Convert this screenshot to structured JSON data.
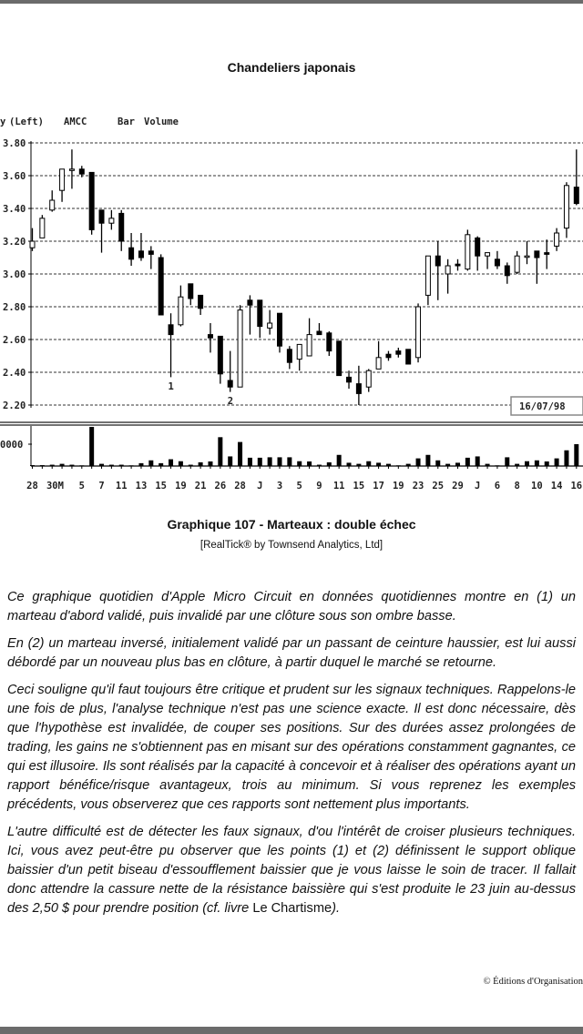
{
  "page": {
    "title": "Chandeliers japonais",
    "caption": "Graphique 107 - Marteaux : double échec",
    "source": "[RealTick® by Townsend Analytics, Ltd]",
    "paragraphs": [
      "Ce graphique quotidien d'Apple Micro Circuit en données quotidiennes montre en (1) un marteau d'abord validé, puis invalidé par une clôture sous son ombre basse.",
      "En (2) un marteau inversé, initialement validé par un passant de ceinture haussier, est lui aussi débordé par un nouveau plus bas en clôture, à partir duquel le marché se retourne.",
      "Ceci souligne qu'il faut toujours être critique et prudent sur les signaux techniques. Rappelons-le une fois de plus, l'analyse technique n'est pas une science exacte. Il est donc nécessaire, dès que l'hypothèse est invalidée, de couper ses positions. Sur des durées assez prolongées de trading, les gains ne s'obtiennent pas en misant sur des opérations constamment gagnantes, ce qui est illusoire. Ils sont réalisés par la capacité à concevoir et à réaliser des opérations ayant un rapport bénéfice/risque avantageux, trois au minimum. Si vous reprenez les exemples précédents, vous observerez que ces rapports sont nettement plus importants."
    ],
    "last_paragraph_italic": "L'autre difficulté est de détecter les faux signaux, d'ou l'intérêt de croiser plusieurs techniques. Ici, vous avez peut-être pu observer que les points (1) et (2) définissent le support oblique baissier d'un petit biseau d'essoufflement baissier que je vous laisse le soin de tracer. Il fallait donc attendre la cassure nette de la résistance baissière qui s'est produite le 23 juin au-dessus des 2,50 $ pour prendre position (cf. livre ",
    "last_paragraph_book": "Le Chartisme",
    "last_paragraph_end": ").",
    "copyright": "© Éditions d'Organisation"
  },
  "chart_data": {
    "type": "candlestick",
    "header_labels": [
      "y",
      "(Left)",
      "AMCC",
      "Bar",
      "Volume"
    ],
    "ylim": [
      2.2,
      3.8
    ],
    "yticks": [
      "3.80",
      "3.60",
      "3.40",
      "3.20",
      "3.00",
      "2.80",
      "2.60",
      "2.40",
      "2.20"
    ],
    "grid": true,
    "date_box": "16/07/98",
    "annotations": [
      {
        "text": "1",
        "index": 14,
        "price": 2.34
      },
      {
        "text": "2",
        "index": 20,
        "price": 2.25
      }
    ],
    "xtick_labels": [
      {
        "label": "28",
        "index": 0
      },
      {
        "label": "30M",
        "index": 2.3
      },
      {
        "label": "5",
        "index": 5
      },
      {
        "label": "7",
        "index": 7
      },
      {
        "label": "11",
        "index": 9
      },
      {
        "label": "13",
        "index": 11
      },
      {
        "label": "15",
        "index": 13
      },
      {
        "label": "19",
        "index": 15
      },
      {
        "label": "21",
        "index": 17
      },
      {
        "label": "26",
        "index": 19
      },
      {
        "label": "28",
        "index": 21
      },
      {
        "label": "J",
        "index": 23
      },
      {
        "label": "3",
        "index": 25
      },
      {
        "label": "5",
        "index": 27
      },
      {
        "label": "9",
        "index": 29
      },
      {
        "label": "11",
        "index": 31
      },
      {
        "label": "15",
        "index": 33
      },
      {
        "label": "17",
        "index": 35
      },
      {
        "label": "19",
        "index": 37
      },
      {
        "label": "23",
        "index": 39
      },
      {
        "label": "25",
        "index": 41
      },
      {
        "label": "29",
        "index": 43
      },
      {
        "label": "J",
        "index": 45
      },
      {
        "label": "6",
        "index": 47
      },
      {
        "label": "8",
        "index": 49
      },
      {
        "label": "10",
        "index": 51
      },
      {
        "label": "14",
        "index": 53
      },
      {
        "label": "16",
        "index": 55
      }
    ],
    "candles_ohlc": [
      [
        3.16,
        3.28,
        3.14,
        3.2
      ],
      [
        3.22,
        3.36,
        3.22,
        3.34
      ],
      [
        3.39,
        3.51,
        3.38,
        3.45
      ],
      [
        3.51,
        3.64,
        3.44,
        3.64
      ],
      [
        3.64,
        3.76,
        3.52,
        3.64
      ],
      [
        3.64,
        3.66,
        3.59,
        3.61
      ],
      [
        3.62,
        3.62,
        3.24,
        3.27
      ],
      [
        3.39,
        3.39,
        3.13,
        3.31
      ],
      [
        3.31,
        3.39,
        3.27,
        3.34
      ],
      [
        3.37,
        3.39,
        3.14,
        3.2
      ],
      [
        3.16,
        3.25,
        3.05,
        3.09
      ],
      [
        3.14,
        3.25,
        3.08,
        3.1
      ],
      [
        3.14,
        3.17,
        3.03,
        3.12
      ],
      [
        3.1,
        3.12,
        2.75,
        2.75
      ],
      [
        2.69,
        2.76,
        2.37,
        2.63
      ],
      [
        2.69,
        2.93,
        2.68,
        2.86
      ],
      [
        2.94,
        2.94,
        2.81,
        2.85
      ],
      [
        2.87,
        2.87,
        2.75,
        2.79
      ],
      [
        2.63,
        2.7,
        2.52,
        2.61
      ],
      [
        2.62,
        2.62,
        2.33,
        2.39
      ],
      [
        2.35,
        2.53,
        2.28,
        2.31
      ],
      [
        2.31,
        2.81,
        2.31,
        2.78
      ],
      [
        2.84,
        2.87,
        2.63,
        2.81
      ],
      [
        2.84,
        2.84,
        2.61,
        2.68
      ],
      [
        2.67,
        2.78,
        2.63,
        2.7
      ],
      [
        2.76,
        2.76,
        2.52,
        2.56
      ],
      [
        2.54,
        2.56,
        2.42,
        2.46
      ],
      [
        2.48,
        2.57,
        2.41,
        2.57
      ],
      [
        2.5,
        2.73,
        2.5,
        2.63
      ],
      [
        2.65,
        2.7,
        2.63,
        2.63
      ],
      [
        2.64,
        2.65,
        2.5,
        2.53
      ],
      [
        2.59,
        2.59,
        2.38,
        2.38
      ],
      [
        2.37,
        2.41,
        2.3,
        2.34
      ],
      [
        2.33,
        2.44,
        2.2,
        2.27
      ],
      [
        2.31,
        2.42,
        2.28,
        2.41
      ],
      [
        2.42,
        2.59,
        2.42,
        2.49
      ],
      [
        2.51,
        2.53,
        2.47,
        2.49
      ],
      [
        2.53,
        2.55,
        2.49,
        2.51
      ],
      [
        2.54,
        2.54,
        2.45,
        2.45
      ],
      [
        2.49,
        2.82,
        2.46,
        2.8
      ],
      [
        2.87,
        3.11,
        2.81,
        3.11
      ],
      [
        3.11,
        3.2,
        2.84,
        3.05
      ],
      [
        3.0,
        3.09,
        2.88,
        3.05
      ],
      [
        3.06,
        3.09,
        3.02,
        3.05
      ],
      [
        3.03,
        3.27,
        3.02,
        3.24
      ],
      [
        3.22,
        3.23,
        3.02,
        3.11
      ],
      [
        3.11,
        3.13,
        3.03,
        3.13
      ],
      [
        3.09,
        3.14,
        3.03,
        3.05
      ],
      [
        3.05,
        3.07,
        2.94,
        2.99
      ],
      [
        3.01,
        3.14,
        3.0,
        3.11
      ],
      [
        3.11,
        3.2,
        3.06,
        3.11
      ],
      [
        3.14,
        3.14,
        2.94,
        3.1
      ],
      [
        3.13,
        3.21,
        3.03,
        3.12
      ],
      [
        3.17,
        3.28,
        3.14,
        3.25
      ],
      [
        3.28,
        3.56,
        3.22,
        3.54
      ],
      [
        3.53,
        3.76,
        3.42,
        3.43
      ]
    ],
    "volume_tick_label": "0000",
    "volume_relative_to_tick": [
      0.04,
      0.04,
      0.06,
      0.1,
      0.06,
      0.03,
      1.79,
      0.1,
      0.06,
      0.06,
      0.03,
      0.13,
      0.26,
      0.13,
      0.31,
      0.22,
      0.06,
      0.17,
      0.21,
      1.32,
      0.44,
      1.1,
      0.38,
      0.38,
      0.4,
      0.4,
      0.4,
      0.22,
      0.21,
      0.06,
      0.17,
      0.51,
      0.15,
      0.1,
      0.22,
      0.15,
      0.1,
      0.03,
      0.1,
      0.35,
      0.51,
      0.26,
      0.1,
      0.15,
      0.38,
      0.44,
      0.1,
      0.03,
      0.4,
      0.1,
      0.22,
      0.26,
      0.21,
      0.35,
      0.72,
      1.0
    ],
    "colors": {
      "ink": "#000000",
      "grid": "#333333"
    }
  }
}
